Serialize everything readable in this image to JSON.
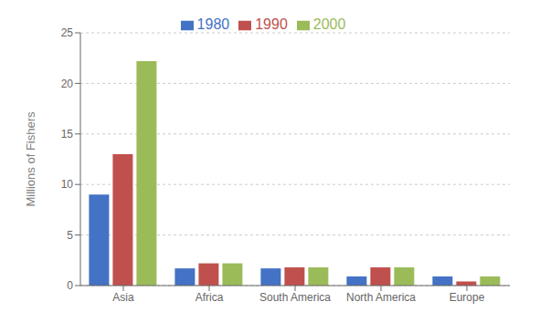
{
  "chart_data": {
    "type": "bar",
    "categories": [
      "Asia",
      "Africa",
      "South America",
      "North America",
      "Europe"
    ],
    "series": [
      {
        "name": "1980",
        "color": "#4472C4",
        "values": [
          9.0,
          1.7,
          1.7,
          0.9,
          0.9
        ]
      },
      {
        "name": "1990",
        "color": "#C0504D",
        "values": [
          13.0,
          2.2,
          1.8,
          1.8,
          0.4
        ]
      },
      {
        "name": "2000",
        "color": "#9BBB59",
        "values": [
          22.2,
          2.2,
          1.8,
          1.8,
          0.9
        ]
      }
    ],
    "ylabel": "Millions of Fishers",
    "ylim": [
      0,
      25
    ],
    "yticks": [
      0,
      5,
      10,
      15,
      20,
      25
    ],
    "grid": true,
    "legend": "top"
  }
}
